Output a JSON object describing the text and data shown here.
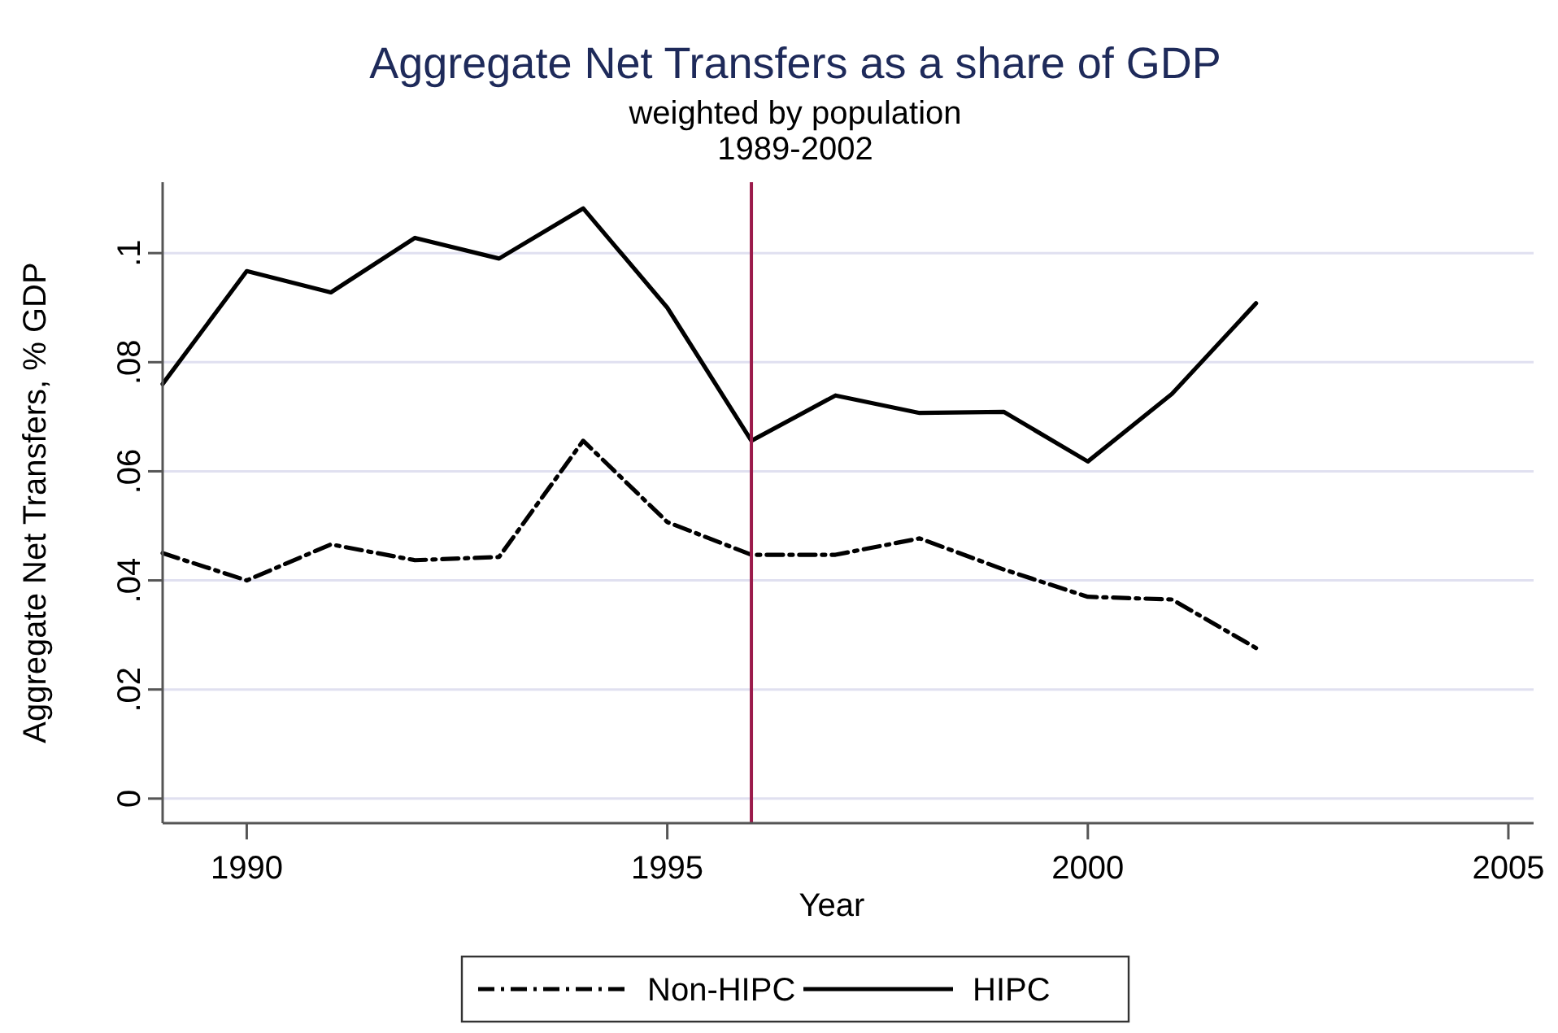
{
  "chart_data": {
    "type": "line",
    "title": "Aggregate Net Transfers as a share of GDP",
    "subtitle": "weighted by population\n1989-2002",
    "xlabel": "Year",
    "ylabel": "Aggregate Net Transfers, % GDP",
    "x": [
      1989,
      1990,
      1991,
      1992,
      1993,
      1994,
      1995,
      1996,
      1997,
      1998,
      1999,
      2000,
      2001,
      2002
    ],
    "series": [
      {
        "name": "Non-HIPC",
        "color": "#000000",
        "line_style": "dashdot",
        "values": [
          0.045,
          0.04,
          0.0466,
          0.0437,
          0.0443,
          0.0656,
          0.0507,
          0.0447,
          0.0447,
          0.0477,
          0.042,
          0.037,
          0.0365,
          0.0276
        ]
      },
      {
        "name": "HIPC",
        "color": "#000000",
        "line_style": "solid",
        "values": [
          0.076,
          0.0967,
          0.0928,
          0.1028,
          0.099,
          0.1082,
          0.09,
          0.0656,
          0.0739,
          0.0707,
          0.0709,
          0.0618,
          0.0742,
          0.0908
        ]
      }
    ],
    "xlim": [
      1989,
      2005.3
    ],
    "xticks": [
      1990,
      1995,
      2000,
      2005
    ],
    "ylim": [
      -0.0045,
      0.113
    ],
    "yticks": [
      {
        "value": 0,
        "label": "0"
      },
      {
        "value": 0.02,
        "label": ".02"
      },
      {
        "value": 0.04,
        "label": ".04"
      },
      {
        "value": 0.06,
        "label": ".06"
      },
      {
        "value": 0.08,
        "label": ".08"
      },
      {
        "value": 0.1,
        "label": ".1"
      }
    ],
    "ref_lines": [
      {
        "axis": "x",
        "value": 1996,
        "color": "#9b1b4b"
      }
    ],
    "grid": "y",
    "legend": "bottom",
    "marker": "none"
  }
}
